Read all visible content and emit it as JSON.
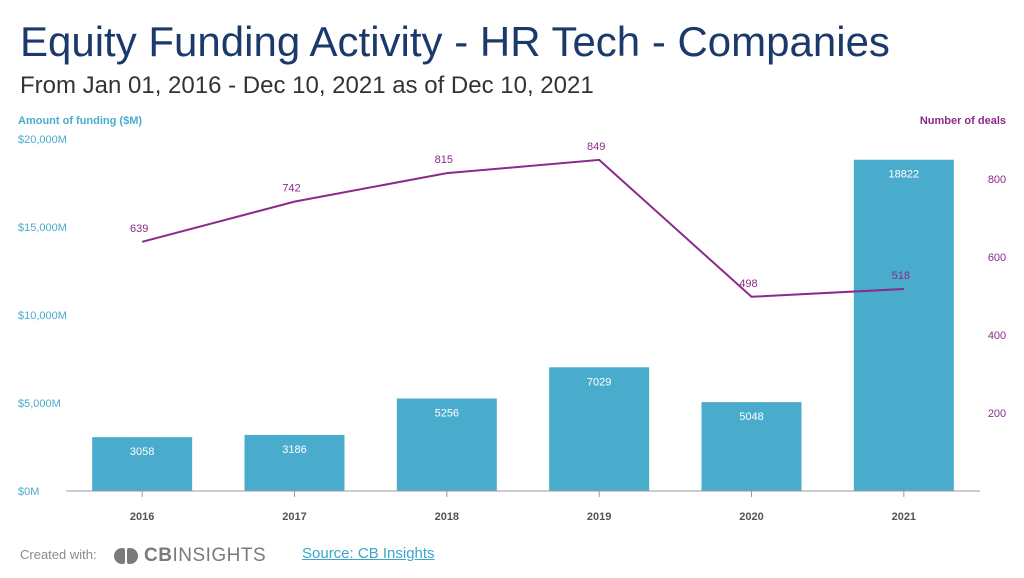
{
  "header": {
    "title": "Equity Funding Activity - HR Tech - Companies",
    "subtitle": "From Jan 01, 2016 - Dec 10, 2021 as of Dec 10, 2021"
  },
  "chart_data": {
    "type": "bar",
    "categories": [
      "2016",
      "2017",
      "2018",
      "2019",
      "2020",
      "2021"
    ],
    "series": [
      {
        "name": "Amount of funding ($M)",
        "type": "bar",
        "axis": "left",
        "values": [
          3058,
          3186,
          5256,
          7029,
          5048,
          18822
        ],
        "color": "#4aaccd"
      },
      {
        "name": "Number of deals",
        "type": "line",
        "axis": "right",
        "values": [
          639,
          742,
          815,
          849,
          498,
          518
        ],
        "color": "#8b2a8b"
      }
    ],
    "left_axis": {
      "label": "Amount of funding ($M)",
      "ticks": [
        0,
        5000,
        10000,
        15000,
        20000
      ],
      "tick_labels": [
        "$0M",
        "$5,000M",
        "$10,000M",
        "$15,000M",
        "$20,000M"
      ],
      "ylim": [
        0,
        20000
      ],
      "color": "#4aaccd"
    },
    "right_axis": {
      "label": "Number of deals",
      "ticks": [
        200,
        400,
        600,
        800
      ],
      "tick_labels": [
        "200",
        "400",
        "600",
        "800"
      ],
      "ylim": [
        0,
        800
      ],
      "color": "#8b2a8b"
    },
    "grid": false,
    "legend": "none"
  },
  "footer": {
    "created_with": "Created with:",
    "logo_bold": "CB",
    "logo_text": "INSIGHTS",
    "source": "Source: CB Insights"
  }
}
